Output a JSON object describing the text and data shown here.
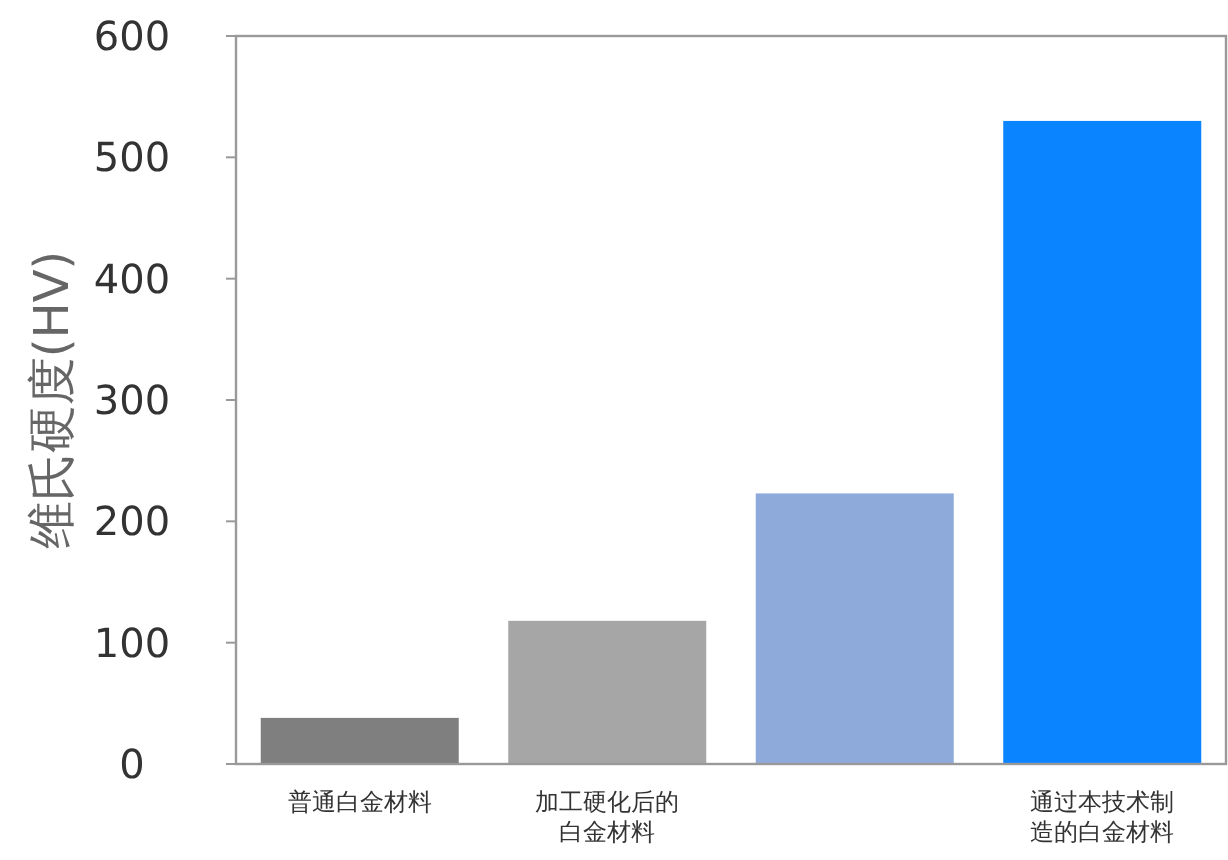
{
  "chart_data": {
    "type": "bar",
    "ylabel": "维氏硬度(HV)",
    "categories": [
      "普通白金材料",
      "加工硬化后的白金材料",
      null,
      "通过本技术制造的白金材料"
    ],
    "values": [
      38,
      118,
      223,
      530
    ],
    "colors": [
      "#7f7f7f",
      "#a6a6a6",
      "#8eaadb",
      "#0a84ff"
    ],
    "ylim": [
      0,
      600
    ],
    "yticks": [
      0,
      100,
      200,
      300,
      400,
      500,
      600
    ],
    "grid": false
  }
}
